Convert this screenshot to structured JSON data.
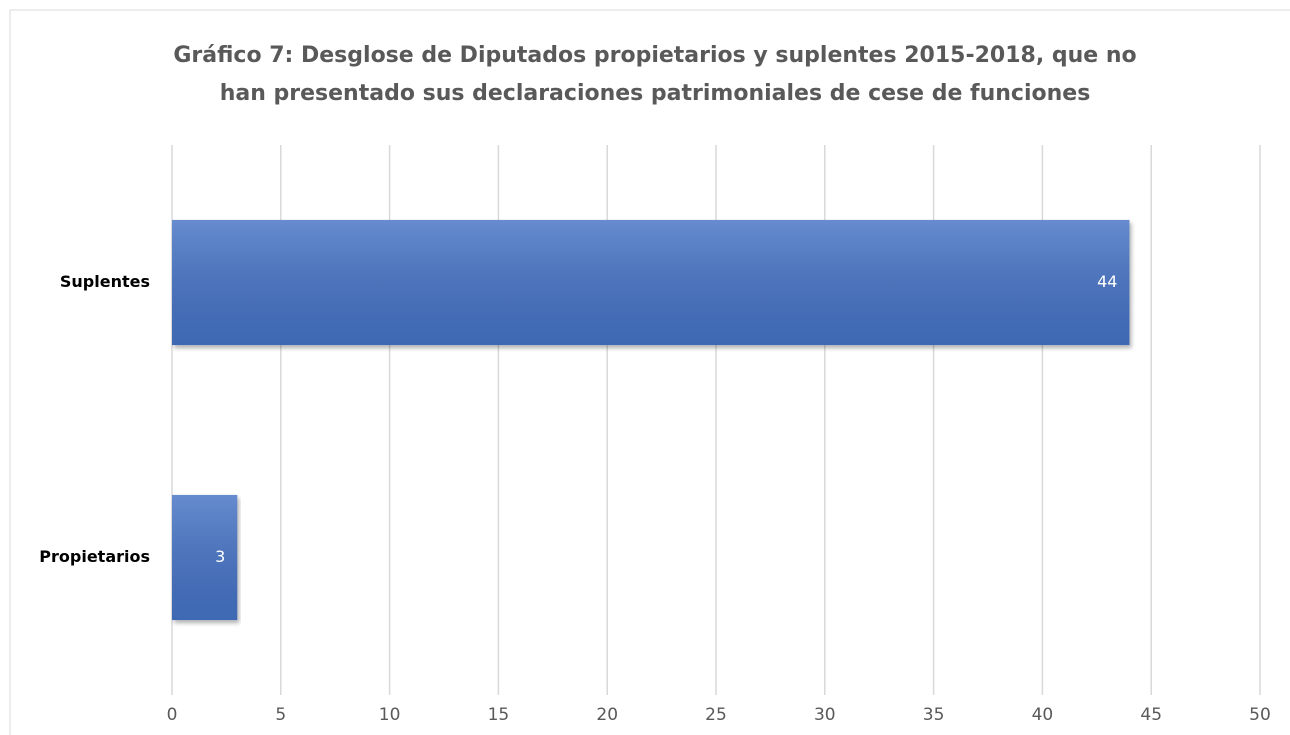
{
  "chart_data": {
    "type": "bar",
    "orientation": "horizontal",
    "title": [
      "Gráfico 7: Desglose de Diputados propietarios y suplentes 2015-2018, que no",
      "han presentado sus declaraciones patrimoniales de cese de funciones"
    ],
    "categories": [
      "Suplentes",
      "Propietarios"
    ],
    "values": [
      44,
      3
    ],
    "color": "#4472c4",
    "xlim": [
      0,
      50
    ],
    "xticks": [
      0,
      5,
      10,
      15,
      20,
      25,
      30,
      35,
      40,
      45,
      50
    ],
    "grid": true
  }
}
